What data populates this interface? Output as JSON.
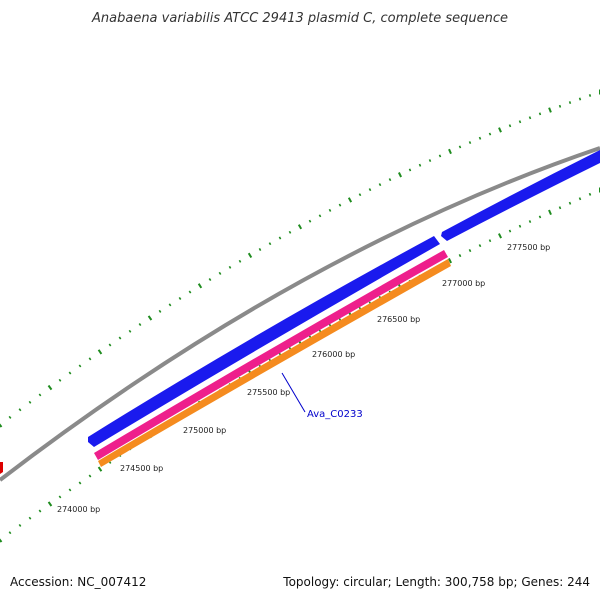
{
  "title": "Anabaena variabilis ATCC 29413 plasmid C, complete sequence",
  "ruler_labels": [
    "274000 bp",
    "274500 bp",
    "275000 bp",
    "275500 bp",
    "276000 bp",
    "276500 bp",
    "277000 bp",
    "277500 bp"
  ],
  "gene_label": "Ava_C0233",
  "footer": {
    "accession": "Accession: NC_007412",
    "summary": "Topology: circular; Length: 300,758 bp; Genes: 244"
  },
  "colors": {
    "backbone": "#8c8c8c",
    "cds_blue": "#1a1aee",
    "gene_pink": "#ee1f8c",
    "gene_orange": "#f58b1f",
    "tick_green": "#1f8c1f",
    "marker_red": "#dd0000",
    "label_blue": "#0000cc"
  }
}
